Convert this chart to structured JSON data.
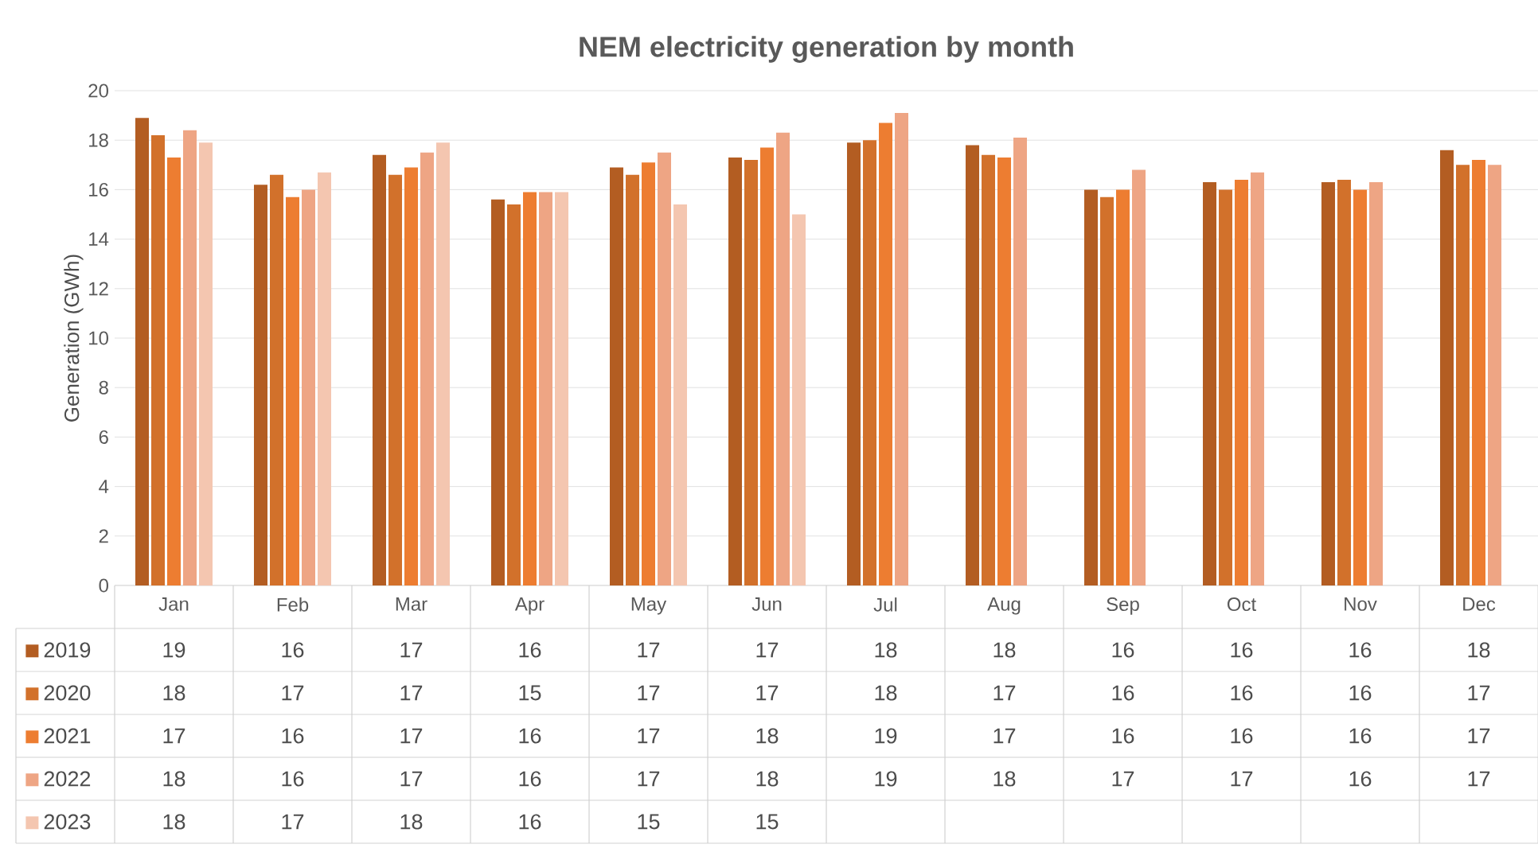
{
  "chart_data": {
    "type": "bar",
    "title": "NEM electricity generation  by month",
    "ylabel": "Generation (GWh)",
    "categories": [
      "Jan",
      "Feb",
      "Mar",
      "Apr",
      "May",
      "Jun",
      "Jul",
      "Aug",
      "Sep",
      "Oct",
      "Nov",
      "Dec"
    ],
    "series": [
      {
        "name": "2019",
        "color": "#b35d22",
        "values": [
          18.9,
          16.2,
          17.4,
          15.6,
          16.9,
          17.3,
          17.9,
          17.8,
          16.0,
          16.3,
          16.3,
          17.6
        ],
        "value_labels": [
          "19",
          "16",
          "17",
          "16",
          "17",
          "17",
          "18",
          "18",
          "16",
          "16",
          "16",
          "18"
        ]
      },
      {
        "name": "2020",
        "color": "#d2712b",
        "values": [
          18.2,
          16.6,
          16.6,
          15.4,
          16.6,
          17.2,
          18.0,
          17.4,
          15.7,
          16.0,
          16.4,
          17.0
        ],
        "value_labels": [
          "18",
          "17",
          "17",
          "15",
          "17",
          "17",
          "18",
          "17",
          "16",
          "16",
          "16",
          "17"
        ]
      },
      {
        "name": "2021",
        "color": "#ed7d31",
        "values": [
          17.3,
          15.7,
          16.9,
          15.9,
          17.1,
          17.7,
          18.7,
          17.3,
          16.0,
          16.4,
          16.0,
          17.2
        ],
        "value_labels": [
          "17",
          "16",
          "17",
          "16",
          "17",
          "18",
          "19",
          "17",
          "16",
          "16",
          "16",
          "17"
        ]
      },
      {
        "name": "2022",
        "color": "#eea584",
        "values": [
          18.4,
          16.0,
          17.5,
          15.9,
          17.5,
          18.3,
          19.1,
          18.1,
          16.8,
          16.7,
          16.3,
          17.0
        ],
        "value_labels": [
          "18",
          "16",
          "17",
          "16",
          "17",
          "18",
          "19",
          "18",
          "17",
          "17",
          "16",
          "17"
        ]
      },
      {
        "name": "2023",
        "color": "#f4c6b0",
        "values": [
          17.9,
          16.7,
          17.9,
          15.9,
          15.4,
          15.0,
          null,
          null,
          null,
          null,
          null,
          null
        ],
        "value_labels": [
          "18",
          "17",
          "18",
          "16",
          "15",
          "15",
          null,
          null,
          null,
          null,
          null,
          null
        ]
      }
    ],
    "ylim": [
      0,
      20
    ],
    "yticks": [
      0,
      2,
      4,
      6,
      8,
      10,
      12,
      14,
      16,
      18,
      20
    ],
    "grid": "y",
    "legend": "bottom"
  }
}
